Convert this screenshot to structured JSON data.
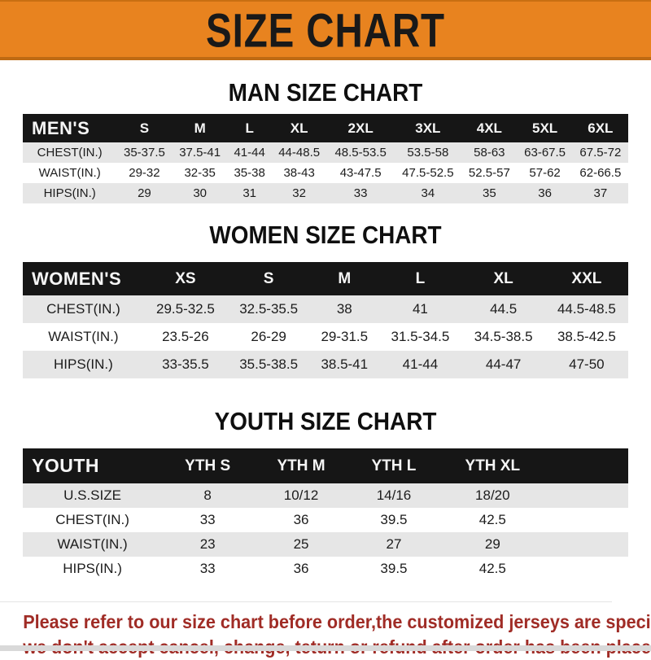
{
  "banner": {
    "title": "SIZE CHART",
    "bg_color": "#E8831F",
    "text_color": "#191919"
  },
  "sections": [
    {
      "heading": "MAN SIZE CHART",
      "header_label": "MEN'S",
      "columns": [
        "S",
        "M",
        "L",
        "XL",
        "2XL",
        "3XL",
        "4XL",
        "5XL",
        "6XL"
      ],
      "rows": [
        {
          "label": "CHEST(IN.)",
          "values": [
            "35-37.5",
            "37.5-41",
            "41-44",
            "44-48.5",
            "48.5-53.5",
            "53.5-58",
            "58-63",
            "63-67.5",
            "67.5-72"
          ]
        },
        {
          "label": "WAIST(IN.)",
          "values": [
            "29-32",
            "32-35",
            "35-38",
            "38-43",
            "43-47.5",
            "47.5-52.5",
            "52.5-57",
            "57-62",
            "62-66.5"
          ]
        },
        {
          "label": "HIPS(IN.)",
          "values": [
            "29",
            "30",
            "31",
            "32",
            "33",
            "34",
            "35",
            "36",
            "37"
          ]
        }
      ]
    },
    {
      "heading": "WOMEN SIZE CHART",
      "header_label": "WOMEN'S",
      "columns": [
        "XS",
        "S",
        "M",
        "L",
        "XL",
        "XXL"
      ],
      "rows": [
        {
          "label": "CHEST(IN.)",
          "values": [
            "29.5-32.5",
            "32.5-35.5",
            "38",
            "41",
            "44.5",
            "44.5-48.5"
          ]
        },
        {
          "label": "WAIST(IN.)",
          "values": [
            "23.5-26",
            "26-29",
            "29-31.5",
            "31.5-34.5",
            "34.5-38.5",
            "38.5-42.5"
          ]
        },
        {
          "label": "HIPS(IN.)",
          "values": [
            "33-35.5",
            "35.5-38.5",
            "38.5-41",
            "41-44",
            "44-47",
            "47-50"
          ]
        }
      ]
    },
    {
      "heading": "YOUTH SIZE CHART",
      "header_label": "YOUTH",
      "columns": [
        "YTH S",
        "YTH M",
        "YTH L",
        "YTH XL"
      ],
      "trailing_spacer": true,
      "rows": [
        {
          "label": "U.S.SIZE",
          "values": [
            "8",
            "10/12",
            "14/16",
            "18/20"
          ]
        },
        {
          "label": "CHEST(IN.)",
          "values": [
            "33",
            "36",
            "39.5",
            "42.5"
          ]
        },
        {
          "label": "WAIST(IN.)",
          "values": [
            "23",
            "25",
            "27",
            "29"
          ]
        },
        {
          "label": "HIPS(IN.)",
          "values": [
            "33",
            "36",
            "39.5",
            "42.5"
          ]
        }
      ]
    }
  ],
  "footer": {
    "lines": [
      "Please refer to our size chart before order,the customized jerseys are special products,",
      "we don't accept cancel, change, teturn or refund after order has been placed!"
    ],
    "text_color": "#A02C26"
  },
  "colors": {
    "banner_orange": "#E8831F",
    "table_header_black": "#161616",
    "row_stripe_gray": "#E6E6E6",
    "footer_red": "#A02C26"
  }
}
